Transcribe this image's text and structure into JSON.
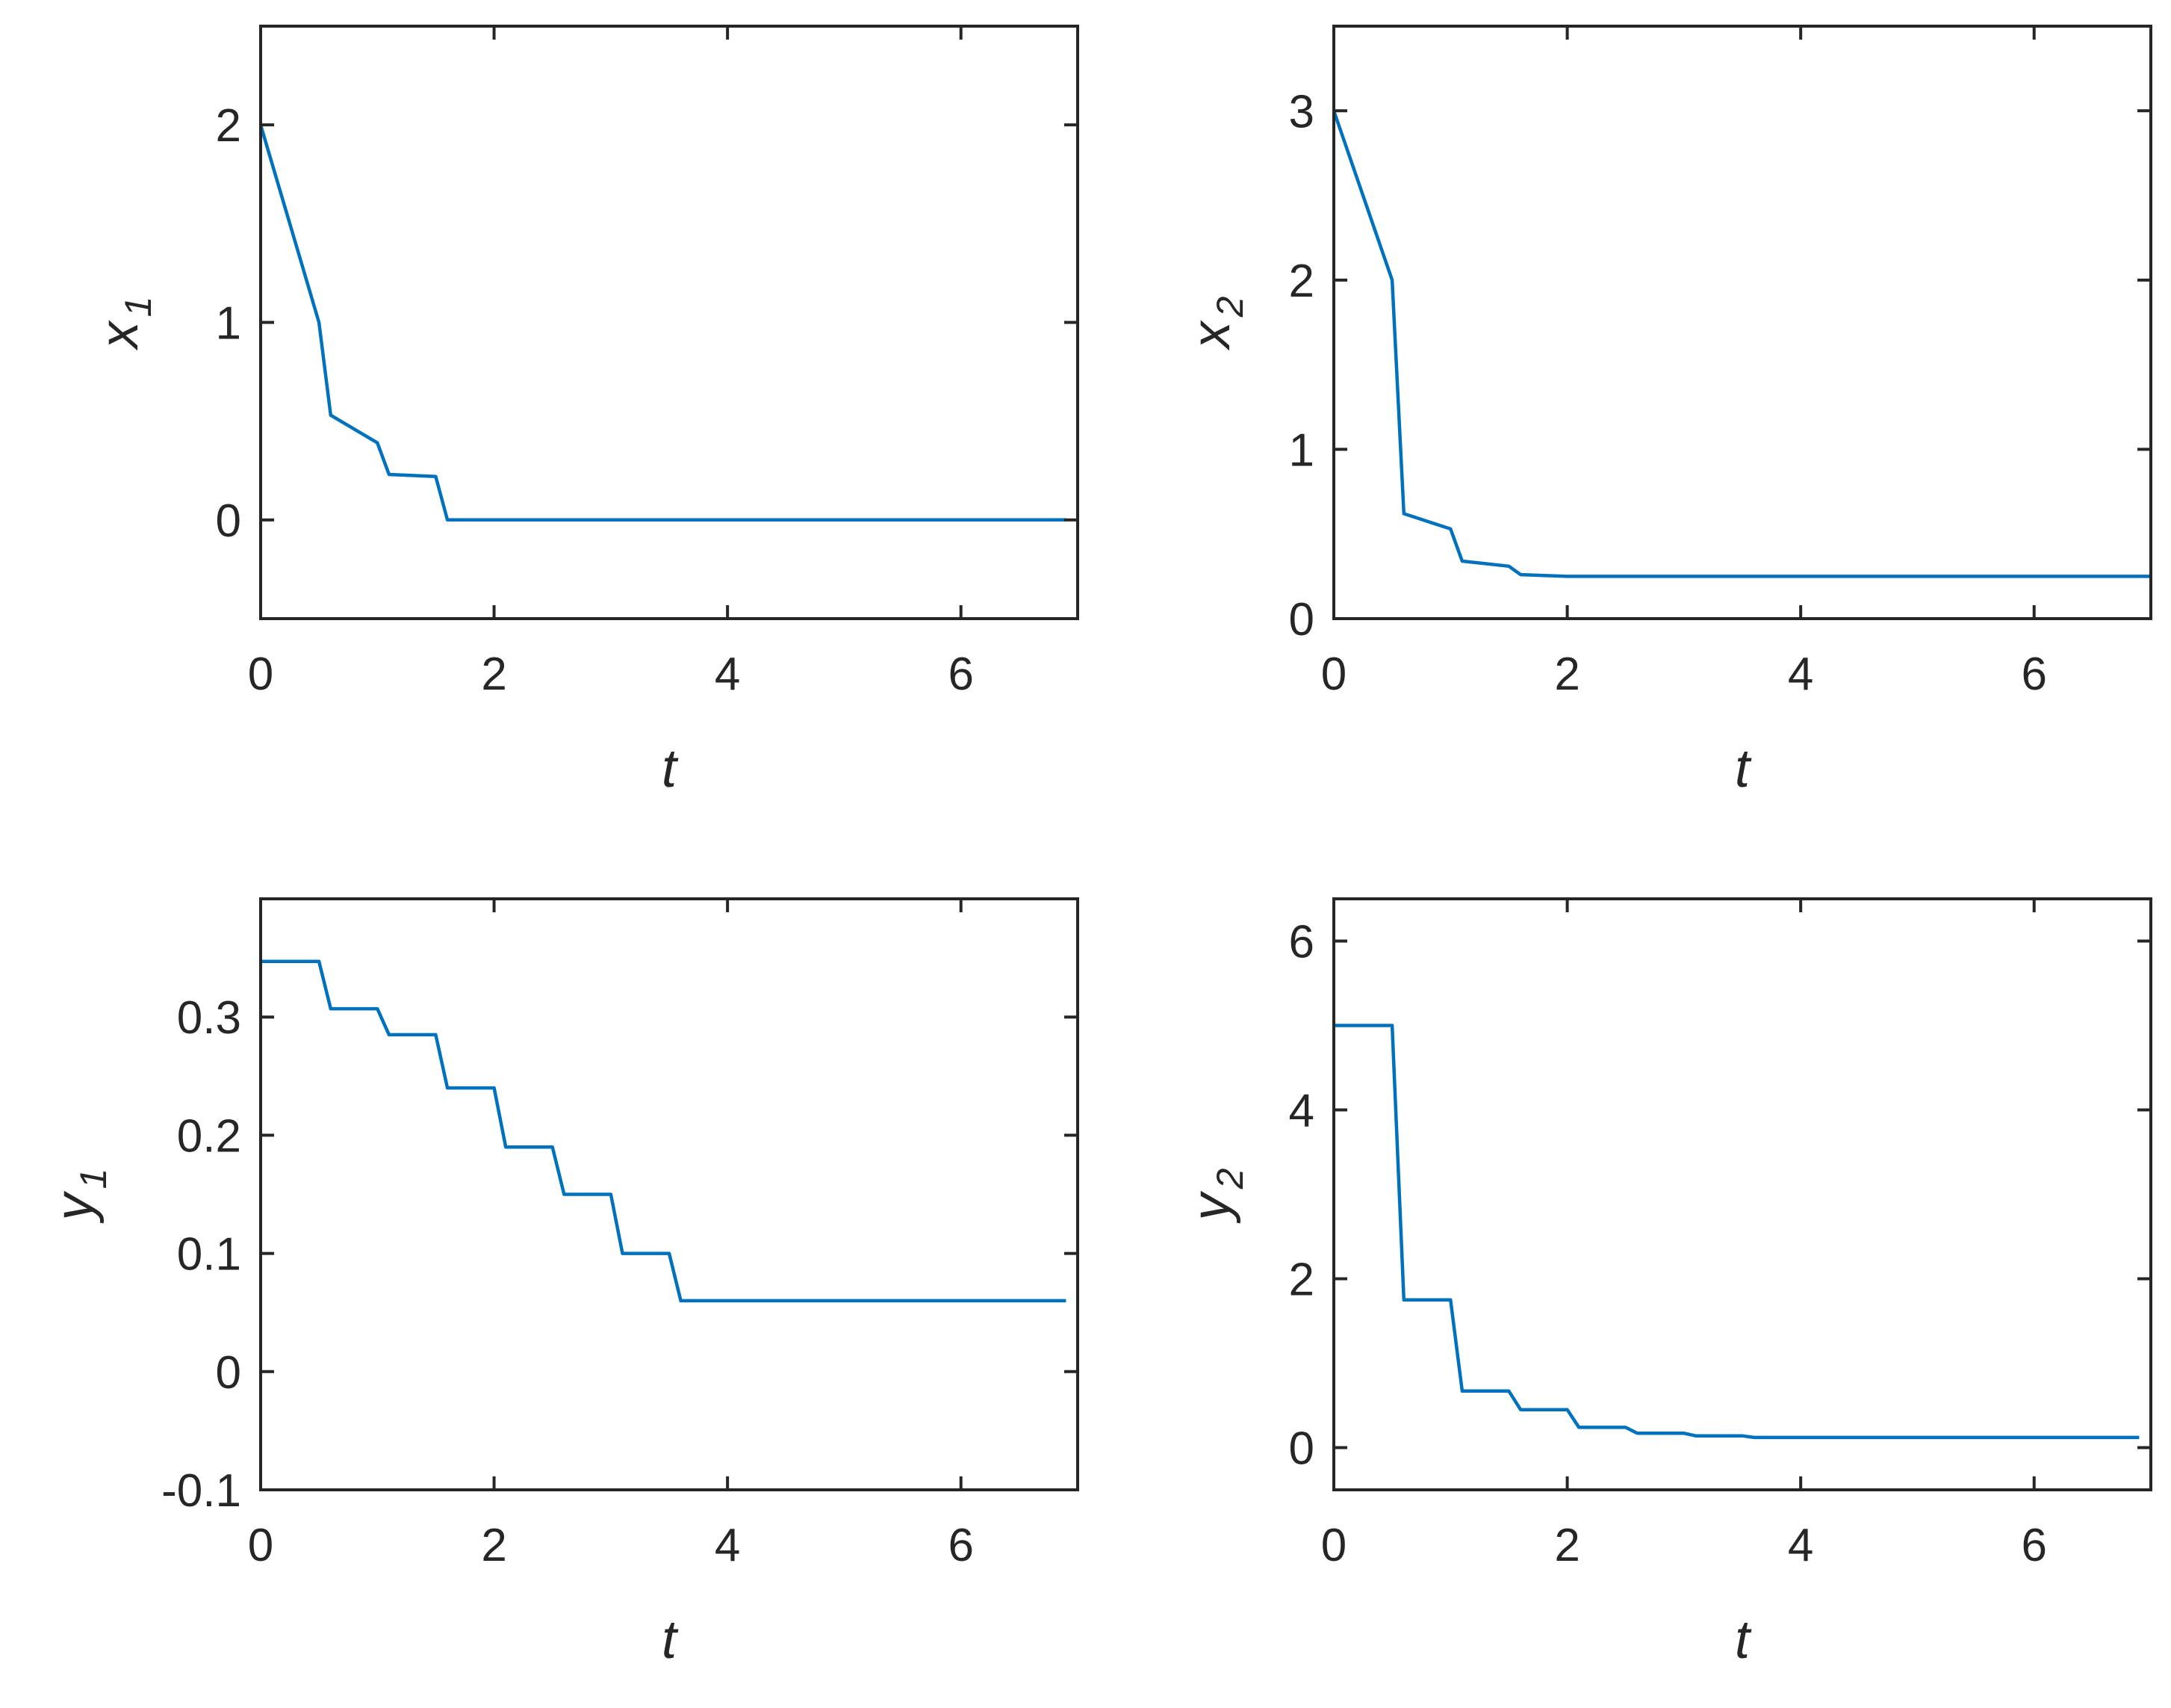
{
  "colors": {
    "series": "#0072BD",
    "axes": "#262626",
    "background": "#ffffff"
  },
  "chart_data": [
    {
      "type": "line",
      "xlabel": "t",
      "ylabel": "x",
      "ylabel_sub": "1",
      "xlim": [
        0,
        7
      ],
      "ylim": [
        -0.5,
        2.5
      ],
      "xticks": [
        0,
        2,
        4,
        6
      ],
      "xtick_labels": [
        "0",
        "2",
        "4",
        "6"
      ],
      "yticks": [
        0,
        1,
        2
      ],
      "ytick_labels": [
        "0",
        "1",
        "2"
      ],
      "grid": false,
      "series": [
        {
          "x": [
            0,
            0.5,
            0.6,
            1.0,
            1.1,
            1.5,
            1.6,
            6.9
          ],
          "y": [
            2,
            1,
            0.53,
            0.39,
            0.23,
            0.22,
            0,
            0
          ]
        }
      ]
    },
    {
      "type": "line",
      "xlabel": "t",
      "ylabel": "x",
      "ylabel_sub": "2",
      "xlim": [
        0,
        7
      ],
      "ylim": [
        0,
        3.5
      ],
      "xticks": [
        0,
        2,
        4,
        6
      ],
      "xtick_labels": [
        "0",
        "2",
        "4",
        "6"
      ],
      "yticks": [
        0,
        1,
        2,
        3
      ],
      "ytick_labels": [
        "0",
        "1",
        "2",
        "3"
      ],
      "grid": false,
      "series": [
        {
          "x": [
            0,
            0.5,
            0.6,
            1.0,
            1.1,
            1.5,
            1.6,
            2.0,
            7.0
          ],
          "y": [
            3,
            2,
            0.62,
            0.53,
            0.34,
            0.31,
            0.26,
            0.25,
            0.25
          ]
        }
      ]
    },
    {
      "type": "line",
      "xlabel": "t",
      "ylabel": "y",
      "ylabel_sub": "1",
      "xlim": [
        0,
        7
      ],
      "ylim": [
        -0.1,
        0.4
      ],
      "xticks": [
        0,
        2,
        4,
        6
      ],
      "xtick_labels": [
        "0",
        "2",
        "4",
        "6"
      ],
      "yticks": [
        -0.1,
        0,
        0.1,
        0.2,
        0.3
      ],
      "ytick_labels": [
        "-0.1",
        "0",
        "0.1",
        "0.2",
        "0.3"
      ],
      "grid": false,
      "series": [
        {
          "x": [
            0,
            0.5,
            0.6,
            1.0,
            1.1,
            1.5,
            1.6,
            2.0,
            2.1,
            2.5,
            2.6,
            3.0,
            3.1,
            3.5,
            3.6,
            6.9
          ],
          "y": [
            0.347,
            0.347,
            0.307,
            0.307,
            0.285,
            0.285,
            0.24,
            0.24,
            0.19,
            0.19,
            0.15,
            0.15,
            0.1,
            0.1,
            0.06,
            0.06
          ]
        }
      ]
    },
    {
      "type": "line",
      "xlabel": "t",
      "ylabel": "y",
      "ylabel_sub": "2",
      "xlim": [
        0,
        7
      ],
      "ylim": [
        -0.5,
        6.5
      ],
      "xticks": [
        0,
        2,
        4,
        6
      ],
      "xtick_labels": [
        "0",
        "2",
        "4",
        "6"
      ],
      "yticks": [
        0,
        2,
        4,
        6
      ],
      "ytick_labels": [
        "0",
        "2",
        "4",
        "6"
      ],
      "grid": false,
      "series": [
        {
          "x": [
            0,
            0.5,
            0.6,
            1.0,
            1.1,
            1.5,
            1.6,
            2.0,
            2.1,
            2.5,
            2.6,
            3.0,
            3.1,
            3.5,
            3.6,
            6.9
          ],
          "y": [
            5,
            5,
            1.75,
            1.75,
            0.67,
            0.67,
            0.45,
            0.45,
            0.24,
            0.24,
            0.17,
            0.17,
            0.14,
            0.14,
            0.12,
            0.12
          ]
        }
      ]
    }
  ]
}
